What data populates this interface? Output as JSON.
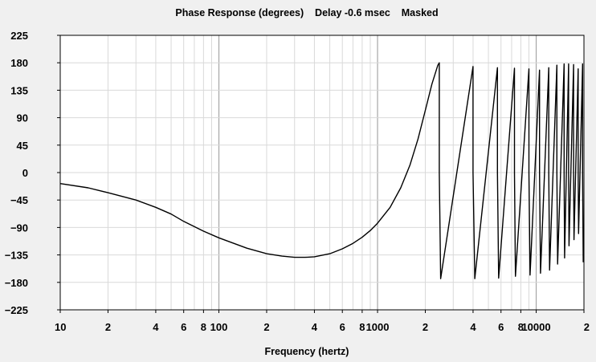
{
  "chart_data": {
    "type": "line",
    "title": "Phase Response (degrees)    Delay -0.6 msec    Masked",
    "xlabel": "Frequency (hertz)",
    "ylabel": "",
    "xscale": "log",
    "xlim": [
      10,
      20000
    ],
    "ylim": [
      -225,
      225
    ],
    "grid": true,
    "legend": "none",
    "colors": {
      "background": "#f0f0f0",
      "plot_area": "#ffffff",
      "line": "#000000",
      "grid_minor": "#d9d9d9",
      "grid_major": "#a6a6a6"
    },
    "y_ticks": [
      225,
      180,
      135,
      90,
      45,
      0,
      -45,
      -90,
      -135,
      -180,
      -225
    ],
    "y_tick_labels": [
      "225",
      "180",
      "135",
      "90",
      "45",
      "0",
      "−45",
      "−90",
      "−135",
      "−180",
      "−225"
    ],
    "x_ticks": [
      10,
      20,
      40,
      60,
      80,
      100,
      200,
      400,
      600,
      800,
      1000,
      2000,
      4000,
      6000,
      8000,
      10000,
      20000
    ],
    "x_tick_labels": [
      "10",
      "2",
      "4",
      "6",
      "8",
      "100",
      "2",
      "4",
      "6",
      "8",
      "1000",
      "2",
      "4",
      "6",
      "8",
      "10000",
      "2"
    ],
    "series": [
      {
        "x": [
          10,
          15,
          20,
          30,
          40,
          50,
          60,
          80,
          100,
          150,
          200,
          250,
          300,
          350,
          400,
          500,
          600,
          700,
          800,
          900,
          1000,
          1200,
          1400,
          1600,
          1800,
          2000,
          2200,
          2400,
          2450,
          2450,
          2500,
          4000,
          4000,
          4100,
          5700,
          5700,
          5800,
          7300,
          7300,
          7400,
          9000,
          9000,
          9150,
          10500,
          10500,
          10650,
          12000,
          12000,
          12150,
          13500,
          13500,
          13650,
          15000,
          15000,
          15100,
          16000,
          16000,
          16100,
          17200,
          17200,
          17300,
          18400,
          18400,
          18500,
          19600,
          19600,
          19800
        ],
        "y": [
          -18,
          -25,
          -33,
          -45,
          -57,
          -68,
          -80,
          -96,
          -107,
          -124,
          -133,
          -137,
          -139,
          -139,
          -138,
          -133,
          -125,
          -116,
          -106,
          -95,
          -83,
          -57,
          -25,
          12,
          55,
          102,
          145,
          176,
          180,
          0,
          -174,
          174,
          0,
          -174,
          172,
          0,
          -173,
          171,
          0,
          -170,
          170,
          0,
          -168,
          168,
          0,
          -165,
          172,
          0,
          -160,
          176,
          0,
          -150,
          178,
          0,
          -140,
          178,
          0,
          -120,
          177,
          0,
          -110,
          170,
          0,
          -100,
          178,
          0,
          -147
        ]
      }
    ]
  }
}
